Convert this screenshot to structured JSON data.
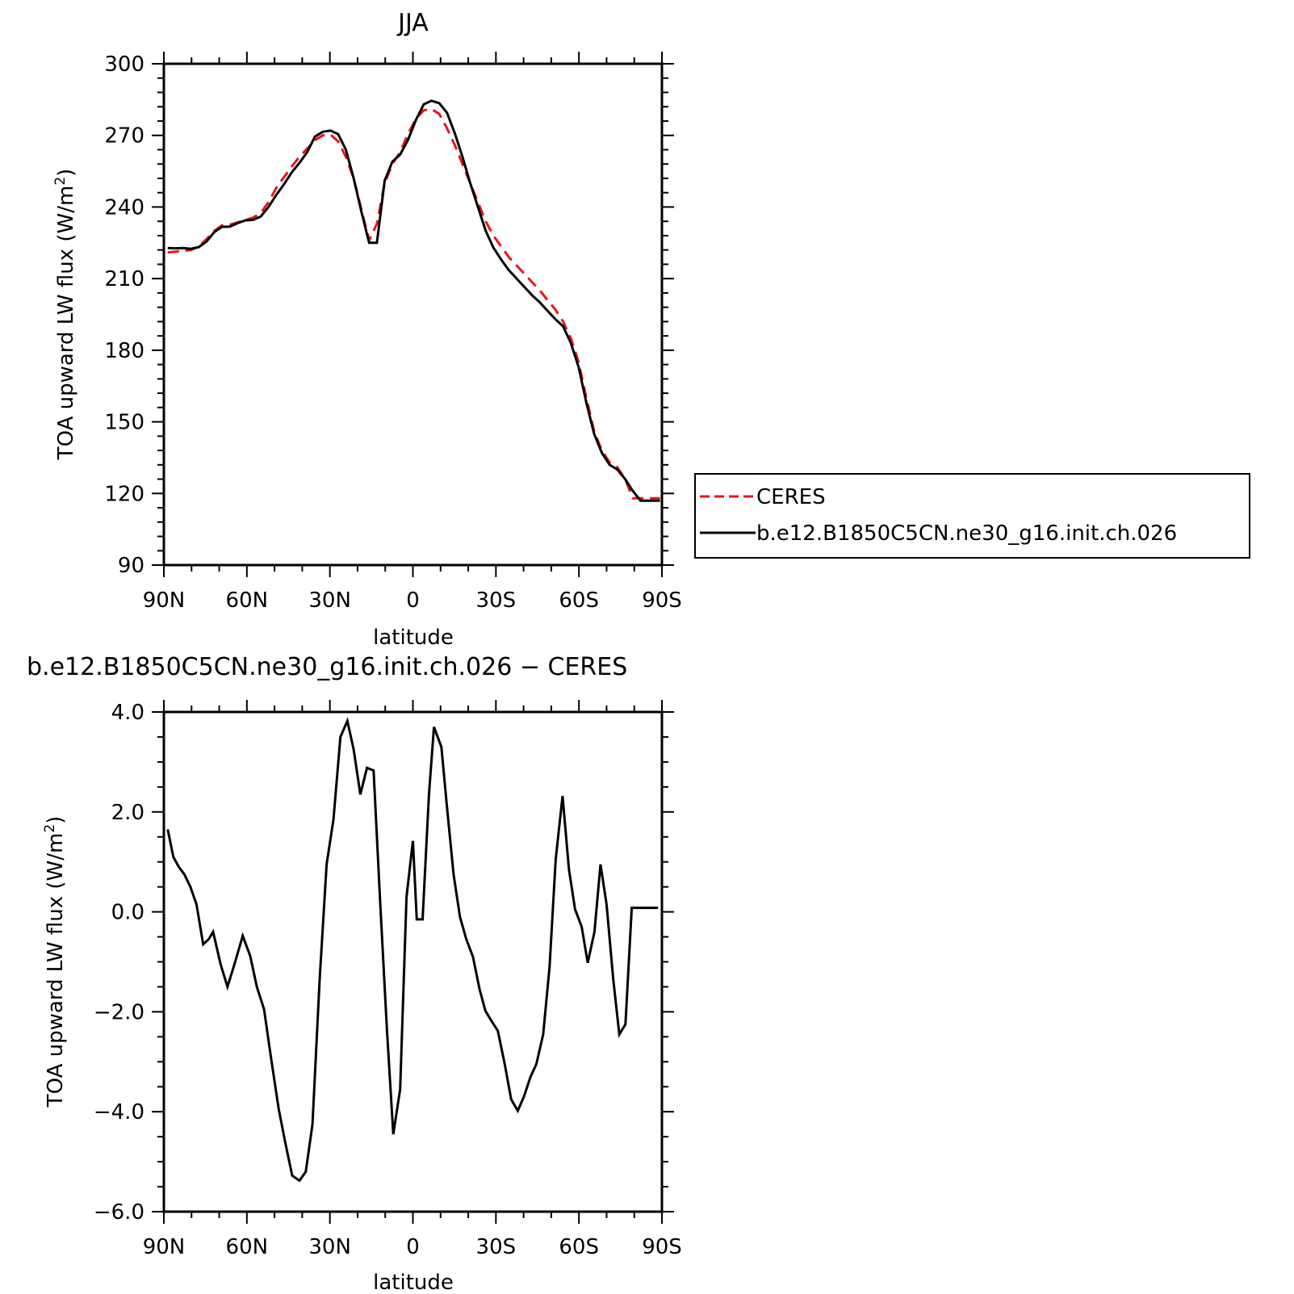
{
  "chart_data": [
    {
      "type": "line",
      "title": "JJA",
      "xlabel": "latitude",
      "ylabel": "TOA upward LW flux (W/m",
      "ylabel_sup": "2",
      "ylabel_end": ")",
      "xlim": [
        90,
        -90
      ],
      "ylim": [
        90,
        300
      ],
      "xticks": [
        90,
        60,
        30,
        0,
        -30,
        -60,
        -90
      ],
      "xtick_labels": [
        "90N",
        "60N",
        "30N",
        "0",
        "30S",
        "60S",
        "90S"
      ],
      "yticks": [
        90,
        120,
        150,
        180,
        210,
        240,
        270,
        300
      ],
      "ytick_labels": [
        "90",
        "120",
        "150",
        "180",
        "210",
        "240",
        "270",
        "300"
      ],
      "grid": false,
      "legend_position": "right-outside",
      "series": [
        {
          "name": "CERES",
          "color": "#e8141b",
          "dash": "dashed",
          "x": [
            88.6,
            85.8,
            83.0,
            80.2,
            77.4,
            74.6,
            71.8,
            69.0,
            66.2,
            63.4,
            60.6,
            57.8,
            55.0,
            52.2,
            49.4,
            46.6,
            43.8,
            41.0,
            38.2,
            35.4,
            32.6,
            29.8,
            27.0,
            24.2,
            21.4,
            18.6,
            15.8,
            13.0,
            10.2,
            7.4,
            4.6,
            1.8,
            -1.1,
            -3.9,
            -6.7,
            -9.5,
            -12.3,
            -15.1,
            -17.9,
            -20.7,
            -23.5,
            -26.3,
            -29.1,
            -31.9,
            -34.7,
            -37.5,
            -40.3,
            -43.1,
            -45.9,
            -48.7,
            -51.5,
            -54.3,
            -57.1,
            -59.9,
            -62.7,
            -65.5,
            -68.3,
            -71.1,
            -73.9,
            -76.7,
            -79.5,
            -82.3,
            -85.1,
            -87.9,
            -89.3
          ],
          "values": [
            221,
            221.3,
            221.6,
            222,
            223.5,
            226.5,
            230,
            232.3,
            232.6,
            233.5,
            234.5,
            235.5,
            237.5,
            242,
            248,
            252.5,
            257,
            261,
            264.5,
            268,
            270,
            270.3,
            267.5,
            261,
            252,
            239,
            226,
            233,
            250,
            258,
            263,
            270.5,
            277,
            280.5,
            281,
            279,
            273,
            266,
            258,
            250,
            242,
            234,
            228,
            223.5,
            219,
            215.5,
            212,
            208.5,
            205,
            201,
            197,
            192,
            185,
            175,
            160,
            146,
            138,
            133,
            131,
            126,
            118,
            118,
            118,
            118,
            118
          ]
        },
        {
          "name": "b.e12.B1850C5CN.ne30_g16.init.ch.026",
          "color": "#000000",
          "dash": "solid",
          "x": [
            88.6,
            85.8,
            83.0,
            80.2,
            77.4,
            74.6,
            71.8,
            69.0,
            66.2,
            63.4,
            60.6,
            57.8,
            55.0,
            52.2,
            49.4,
            46.6,
            43.8,
            41.0,
            38.2,
            35.4,
            32.6,
            29.8,
            27.0,
            24.2,
            21.4,
            18.6,
            15.8,
            13.0,
            10.2,
            7.4,
            4.6,
            1.8,
            -1.1,
            -3.9,
            -6.7,
            -9.5,
            -12.3,
            -15.1,
            -17.9,
            -20.7,
            -23.5,
            -26.3,
            -29.1,
            -31.9,
            -34.7,
            -37.5,
            -40.3,
            -43.1,
            -45.9,
            -48.7,
            -51.5,
            -54.3,
            -57.1,
            -59.9,
            -62.7,
            -65.5,
            -68.3,
            -71.1,
            -73.9,
            -76.7,
            -79.5,
            -82.3,
            -85.1,
            -87.9,
            -89.3
          ],
          "values": [
            222.8,
            222.7,
            222.8,
            222.5,
            223.2,
            225.5,
            229.5,
            231.7,
            231.8,
            233.2,
            234.4,
            234.6,
            236,
            240,
            245,
            249.5,
            254.5,
            258.5,
            263,
            269.5,
            271.5,
            272,
            270.5,
            264,
            252,
            238,
            225,
            225,
            251,
            259,
            262,
            268,
            276.5,
            283,
            284.5,
            283.5,
            279.5,
            271,
            261,
            250,
            240,
            230,
            223,
            218,
            213.5,
            210,
            206.5,
            203,
            200,
            196.5,
            193,
            190,
            183,
            173,
            158,
            145,
            137,
            132,
            130,
            126,
            121,
            117,
            117,
            117,
            117
          ]
        }
      ]
    },
    {
      "type": "line",
      "title": "b.e12.B1850C5CN.ne30_g16.init.ch.026 − CERES",
      "xlabel": "latitude",
      "ylabel": "TOA upward LW flux (W/m",
      "ylabel_sup": "2",
      "ylabel_end": ")",
      "xlim": [
        90,
        -90
      ],
      "ylim": [
        -6,
        4
      ],
      "xticks": [
        90,
        60,
        30,
        0,
        -30,
        -60,
        -90
      ],
      "xtick_labels": [
        "90N",
        "60N",
        "30N",
        "0",
        "30S",
        "60S",
        "90S"
      ],
      "yticks": [
        -6,
        -4,
        -2,
        0,
        2,
        4
      ],
      "ytick_labels": [
        "−6.0",
        "−4.0",
        "−2.0",
        "0.0",
        "2.0",
        "4.0"
      ],
      "grid": false,
      "series": [
        {
          "color": "#000000",
          "dash": "solid",
          "x": [
            88.6,
            86.6,
            84.6,
            82.6,
            80.4,
            78.2,
            75.8,
            73.8,
            72.2,
            69.5,
            67.0,
            64.5,
            61.5,
            58.8,
            56.4,
            53.8,
            51.2,
            48.5,
            46.0,
            43.6,
            41.0,
            38.7,
            36.3,
            33.7,
            31.2,
            28.7,
            26.2,
            23.7,
            21.4,
            19.0,
            16.6,
            14.2,
            11.8,
            9.4,
            7.1,
            4.6,
            2.3,
            0.0,
            -1.4,
            -3.5,
            -5.8,
            -7.6,
            -10.3,
            -12.4,
            -14.7,
            -17.0,
            -19.3,
            -21.7,
            -24.1,
            -26.2,
            -28.6,
            -30.7,
            -33.2,
            -35.5,
            -37.9,
            -40.1,
            -42.5,
            -44.6,
            -47.1,
            -49.4,
            -51.6,
            -54.1,
            -56.4,
            -58.6,
            -61.0,
            -63.2,
            -65.6,
            -67.8,
            -70.0,
            -72.4,
            -74.6,
            -76.8,
            -79.1,
            -81.4,
            -83.6,
            -86.0,
            -88.6
          ],
          "values": [
            1.65,
            1.1,
            0.9,
            0.75,
            0.5,
            0.15,
            -0.65,
            -0.55,
            -0.4,
            -1.05,
            -1.5,
            -1.05,
            -0.48,
            -0.88,
            -1.5,
            -1.95,
            -2.95,
            -3.95,
            -4.65,
            -5.28,
            -5.38,
            -5.2,
            -4.25,
            -1.35,
            0.95,
            1.85,
            3.5,
            3.82,
            3.25,
            2.35,
            2.88,
            2.83,
            0.15,
            -2.35,
            -4.45,
            -3.55,
            0.3,
            1.42,
            -0.15,
            -0.15,
            2.35,
            3.7,
            3.3,
            2.05,
            0.75,
            -0.1,
            -0.55,
            -0.9,
            -1.55,
            -1.98,
            -2.2,
            -2.38,
            -3.05,
            -3.75,
            -3.98,
            -3.7,
            -3.3,
            -3.05,
            -2.45,
            -1.1,
            1.05,
            2.32,
            0.85,
            0.05,
            -0.3,
            -1.02,
            -0.4,
            0.95,
            0.15,
            -1.35,
            -2.45,
            -2.25,
            0.08,
            0.08,
            0.08,
            0.08,
            0.08
          ]
        }
      ]
    }
  ]
}
